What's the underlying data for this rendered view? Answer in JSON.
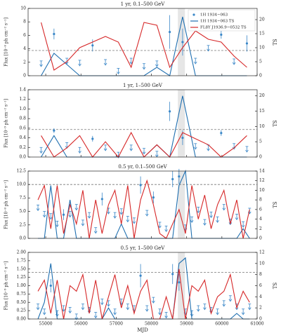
{
  "chart_data": [
    {
      "type": "errorbar",
      "title": "1 yr, 0.1–500 GeV",
      "ylabel": "Flux [10⁻⁸ ph cm⁻² s⁻¹]",
      "y2label": "TS",
      "legend": "upper right",
      "xlim": [
        54500,
        61000
      ],
      "xticks": [
        55000,
        56000,
        57000,
        58000,
        59000,
        60000,
        61000
      ],
      "ylim": [
        0,
        10
      ],
      "yticks": [
        0,
        2,
        4,
        6,
        8,
        10
      ],
      "y2lim": [
        0,
        24
      ],
      "y2ticks": [
        0,
        5,
        10,
        15,
        20
      ],
      "hline": 9,
      "shaded_x": [
        58750,
        58950
      ],
      "x": [
        54870,
        55235,
        55600,
        55965,
        56330,
        56695,
        57060,
        57425,
        57790,
        58155,
        58520,
        58885,
        59250,
        59615,
        59980,
        60345,
        60710
      ],
      "series": [
        {
          "name": "1H 1934−063",
          "color": "#3a87c8",
          "values": [
            2.2,
            6.2,
            2.6,
            2.3,
            4.5,
            2.4,
            1.1,
            2.6,
            1.8,
            2.2,
            6.5,
            5.0,
            2.6,
            4.5,
            6.1,
            2.5,
            4.8
          ],
          "errors": [
            null,
            0.8,
            null,
            null,
            0.9,
            null,
            null,
            null,
            null,
            null,
            2.5,
            2.0,
            null,
            null,
            0.6,
            null,
            1.2
          ]
        },
        {
          "name": "1H 1934−063 TS",
          "color": "#1f6fb0",
          "axis": "y2",
          "values": [
            0,
            8,
            4,
            0,
            0,
            0,
            0,
            0,
            0,
            3,
            0,
            21,
            0,
            0,
            0,
            0,
            0
          ]
        },
        {
          "name": "FL8Y J1936.9−0532 TS",
          "color": "#d62728",
          "axis": "y2",
          "values": [
            19,
            2,
            5,
            10,
            12,
            14,
            12,
            3,
            19,
            18,
            3,
            10,
            16,
            13,
            12,
            7,
            3
          ]
        }
      ]
    },
    {
      "type": "errorbar",
      "title": "1 yr, 1–500 GeV",
      "ylabel": "Flux [10⁻⁹ ph cm⁻² s⁻¹]",
      "y2label": "TS",
      "xlim": [
        54500,
        61000
      ],
      "xticks": [
        55000,
        56000,
        57000,
        58000,
        59000,
        60000,
        61000
      ],
      "ylim": [
        0,
        1.4
      ],
      "yticks": [
        {
          "value": 0,
          "label": "0.0"
        },
        0.2,
        0.4,
        0.6,
        0.8,
        {
          "value": 1,
          "label": "1.0"
        },
        1.2,
        1.4
      ],
      "y2lim": [
        0,
        22
      ],
      "y2ticks": [
        0,
        5,
        10,
        15,
        20
      ],
      "hline": 9,
      "shaded_x": [
        58750,
        58950
      ],
      "x": [
        54870,
        55235,
        55600,
        55965,
        56330,
        56695,
        57060,
        57425,
        57790,
        58155,
        58520,
        58885,
        59250,
        59615,
        59980,
        60345,
        60710
      ],
      "series": [
        {
          "name": "1H 1934−063",
          "color": "#3a87c8",
          "values": [
            0.2,
            0.55,
            0.3,
            0.2,
            0.38,
            0.25,
            0.1,
            0.25,
            0.18,
            0.12,
            0.95,
            0.4,
            0.28,
            0.25,
            0.5,
            0.28,
            0.22
          ],
          "errors": [
            null,
            0.05,
            null,
            null,
            0.06,
            null,
            null,
            null,
            null,
            null,
            0.2,
            0.15,
            null,
            null,
            0.06,
            null,
            null
          ]
        },
        {
          "name": "1H 1934−063 TS",
          "color": "#1f6fb0",
          "axis": "y2",
          "values": [
            0,
            7,
            0,
            0,
            0,
            0,
            0,
            0,
            0,
            4,
            0,
            20,
            0,
            0,
            0,
            0,
            0
          ]
        },
        {
          "name": "FL8Y J1936.9−0532 TS",
          "color": "#d62728",
          "axis": "y2",
          "values": [
            7,
            0,
            3,
            7,
            0,
            5,
            0,
            8,
            0,
            4,
            0,
            8,
            6,
            4,
            0,
            3,
            7
          ]
        }
      ]
    },
    {
      "type": "errorbar",
      "title": "0.5 yr, 0.1–500 GeV",
      "ylabel": "Flux [10⁻⁸ ph cm⁻² s⁻¹]",
      "y2label": "TS",
      "xlim": [
        54500,
        61000
      ],
      "xticks": [
        55000,
        56000,
        57000,
        58000,
        59000,
        60000,
        61000
      ],
      "ylim": [
        0,
        12.5
      ],
      "yticks": [
        {
          "value": 0,
          "label": "0.0"
        },
        2.5,
        {
          "value": 5,
          "label": "5.0"
        },
        7.5,
        {
          "value": 10,
          "label": "10.0"
        },
        12.5
      ],
      "y2lim": [
        0,
        14
      ],
      "y2ticks": [
        0,
        2,
        4,
        6,
        8,
        10,
        12,
        14
      ],
      "hline": 11.2,
      "shaded_x": [
        58750,
        58950
      ],
      "x": [
        54780,
        54962,
        55144,
        55326,
        55508,
        55690,
        55872,
        56054,
        56236,
        56418,
        56600,
        56782,
        56964,
        57146,
        57328,
        57510,
        57692,
        57874,
        58056,
        58238,
        58420,
        58602,
        58784,
        58966,
        59148,
        59330,
        59512,
        59694,
        59876,
        60058,
        60240,
        60422,
        60604,
        60786
      ],
      "series": [
        {
          "name": "1H 1934−063",
          "color": "#3a87c8",
          "values": [
            6.2,
            5.0,
            4.6,
            3.2,
            4.4,
            5.0,
            6.3,
            3.4,
            4.8,
            2.0,
            7.3,
            5.6,
            4.8,
            5.5,
            4.1,
            3.8,
            9.9,
            5.2,
            7.6,
            3.0,
            2.3,
            11.0,
            11.5,
            2.5,
            4.0,
            5.8,
            3.5,
            4.9,
            4.0,
            6.3,
            3.6,
            4.5,
            3.1,
            5.6
          ],
          "errors": [
            null,
            null,
            null,
            null,
            1.0,
            null,
            null,
            null,
            null,
            null,
            1.2,
            null,
            null,
            null,
            null,
            null,
            1.6,
            null,
            1.1,
            null,
            null,
            1.5,
            1.4,
            null,
            null,
            null,
            null,
            null,
            null,
            null,
            null,
            null,
            null,
            null
          ]
        },
        {
          "name": "1H 1934−063 TS",
          "color": "#1f6fb0",
          "axis": "y2",
          "values": [
            0,
            0,
            11,
            0,
            0,
            8,
            0,
            0,
            0,
            0,
            0,
            0,
            0,
            3,
            0,
            0,
            0,
            0,
            0,
            0,
            0,
            0,
            11,
            14,
            0,
            0,
            0,
            0,
            0,
            0,
            0,
            0,
            2,
            0
          ]
        },
        {
          "name": "FL8Y J1936.9−0532 TS",
          "color": "#d62728",
          "axis": "y2",
          "values": [
            8,
            11,
            2,
            11,
            1,
            7,
            3,
            10,
            0,
            8,
            1,
            7,
            10,
            3,
            11,
            0,
            8,
            12,
            7,
            1,
            0,
            3,
            6,
            1,
            11,
            4,
            9,
            2,
            7,
            10,
            3,
            8,
            0,
            6
          ]
        }
      ]
    },
    {
      "type": "errorbar",
      "title": "0.5 yr, 1–500 GeV",
      "ylabel": "Flux [10⁻⁹ ph cm⁻² s⁻¹]",
      "y2label": "TS",
      "xlabel": "MJD",
      "xlim": [
        54500,
        61000
      ],
      "xticks": [
        55000,
        56000,
        57000,
        58000,
        59000,
        60000,
        61000
      ],
      "ylim": [
        0,
        2
      ],
      "yticks": [
        {
          "value": 0,
          "label": "0.00"
        },
        0.25,
        {
          "value": 0.5,
          "label": "0.50"
        },
        0.75,
        {
          "value": 1,
          "label": "1.00"
        },
        1.25,
        {
          "value": 1.5,
          "label": "1.50"
        },
        1.75,
        {
          "value": 2,
          "label": "2.00"
        }
      ],
      "y2lim": [
        0,
        12
      ],
      "y2ticks": [
        0,
        2,
        4,
        6,
        8,
        10,
        12
      ],
      "hline": 8.4,
      "shaded_x": [
        58750,
        58950
      ],
      "x": [
        54780,
        54962,
        55144,
        55326,
        55508,
        55690,
        55872,
        56054,
        56236,
        56418,
        56600,
        56782,
        56964,
        57146,
        57328,
        57510,
        57692,
        57874,
        58056,
        58238,
        58420,
        58602,
        58784,
        58966,
        59148,
        59330,
        59512,
        59694,
        59876,
        60058,
        60240,
        60422,
        60604,
        60786
      ],
      "series": [
        {
          "name": "1H 1934−063",
          "color": "#3a87c8",
          "values": [
            0.45,
            0.3,
            1.0,
            0.25,
            0.4,
            0.35,
            0.15,
            0.45,
            0.35,
            0.2,
            0.6,
            0.55,
            0.3,
            0.6,
            0.45,
            0.4,
            1.3,
            0.4,
            0.65,
            0.3,
            0.2,
            1.35,
            1.1,
            0.3,
            0.25,
            0.4,
            0.45,
            0.35,
            0.3,
            0.55,
            0.7,
            0.45,
            0.3,
            0.45
          ],
          "errors": [
            null,
            null,
            0.2,
            null,
            null,
            null,
            null,
            null,
            null,
            null,
            null,
            null,
            null,
            null,
            null,
            null,
            0.35,
            null,
            null,
            null,
            null,
            0.3,
            0.25,
            null,
            null,
            null,
            null,
            null,
            null,
            null,
            null,
            null,
            null,
            null
          ]
        },
        {
          "name": "1H 1934−063 TS",
          "color": "#1f6fb0",
          "axis": "y2",
          "values": [
            0,
            3,
            10,
            0,
            0,
            0,
            0,
            0,
            0,
            0,
            0,
            2,
            0,
            0,
            0,
            0,
            0,
            0,
            0,
            0,
            0,
            0,
            10,
            11,
            0,
            0,
            0,
            0,
            0,
            0,
            0,
            1,
            0,
            0
          ]
        },
        {
          "name": "FL8Y J1936.9−0532 TS",
          "color": "#d62728",
          "axis": "y2",
          "values": [
            5,
            7,
            1,
            7,
            0,
            6,
            5,
            8,
            1,
            7,
            0,
            4,
            8,
            2,
            6,
            1,
            5,
            7,
            0,
            0,
            4,
            0,
            9,
            0,
            6,
            5,
            7,
            1,
            4,
            5,
            8,
            2,
            5,
            3
          ]
        }
      ]
    }
  ]
}
